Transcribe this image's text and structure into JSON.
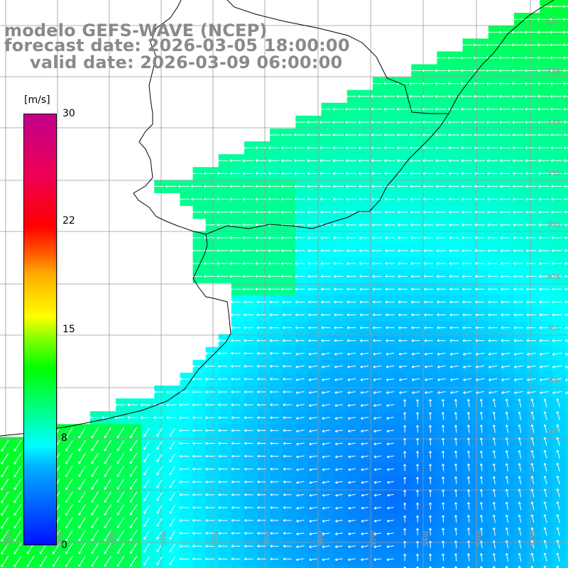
{
  "title": {
    "line1": "modelo GEFS-WAVE (NCEP)",
    "line2": "forecast date: 2026-03-05 18:00:00",
    "line3": "valid date: 2026-03-09 06:00:00"
  },
  "colorbar": {
    "unit": "[m/s]",
    "ticks": [
      "30",
      "22",
      "15",
      "8",
      "0"
    ],
    "tick_values": [
      30,
      22,
      15,
      8,
      0
    ],
    "min": 0,
    "max": 30,
    "colors": [
      "#0010ff",
      "#0060ff",
      "#00b0ff",
      "#00ffff",
      "#00ff99",
      "#00ff00",
      "#88ff00",
      "#ffff00",
      "#ffaa00",
      "#ff5500",
      "#ff0000",
      "#ee0055",
      "#c0008a"
    ]
  },
  "lat_labels": [
    "32S",
    "33S",
    "34S",
    "35S",
    "36S",
    "37S",
    "38S",
    "39S",
    "40S"
  ],
  "lon_labels": [
    "52W",
    "53W",
    "54W",
    "55W",
    "56W",
    "57W",
    "58W",
    "59W",
    "60W",
    "61W",
    "62W"
  ],
  "field": {
    "variable": "wind speed",
    "land_color": "#ffffff",
    "arrow_color": "#ffffff",
    "coastline_color": "#000000",
    "grid_color": "#9a9a9a"
  }
}
